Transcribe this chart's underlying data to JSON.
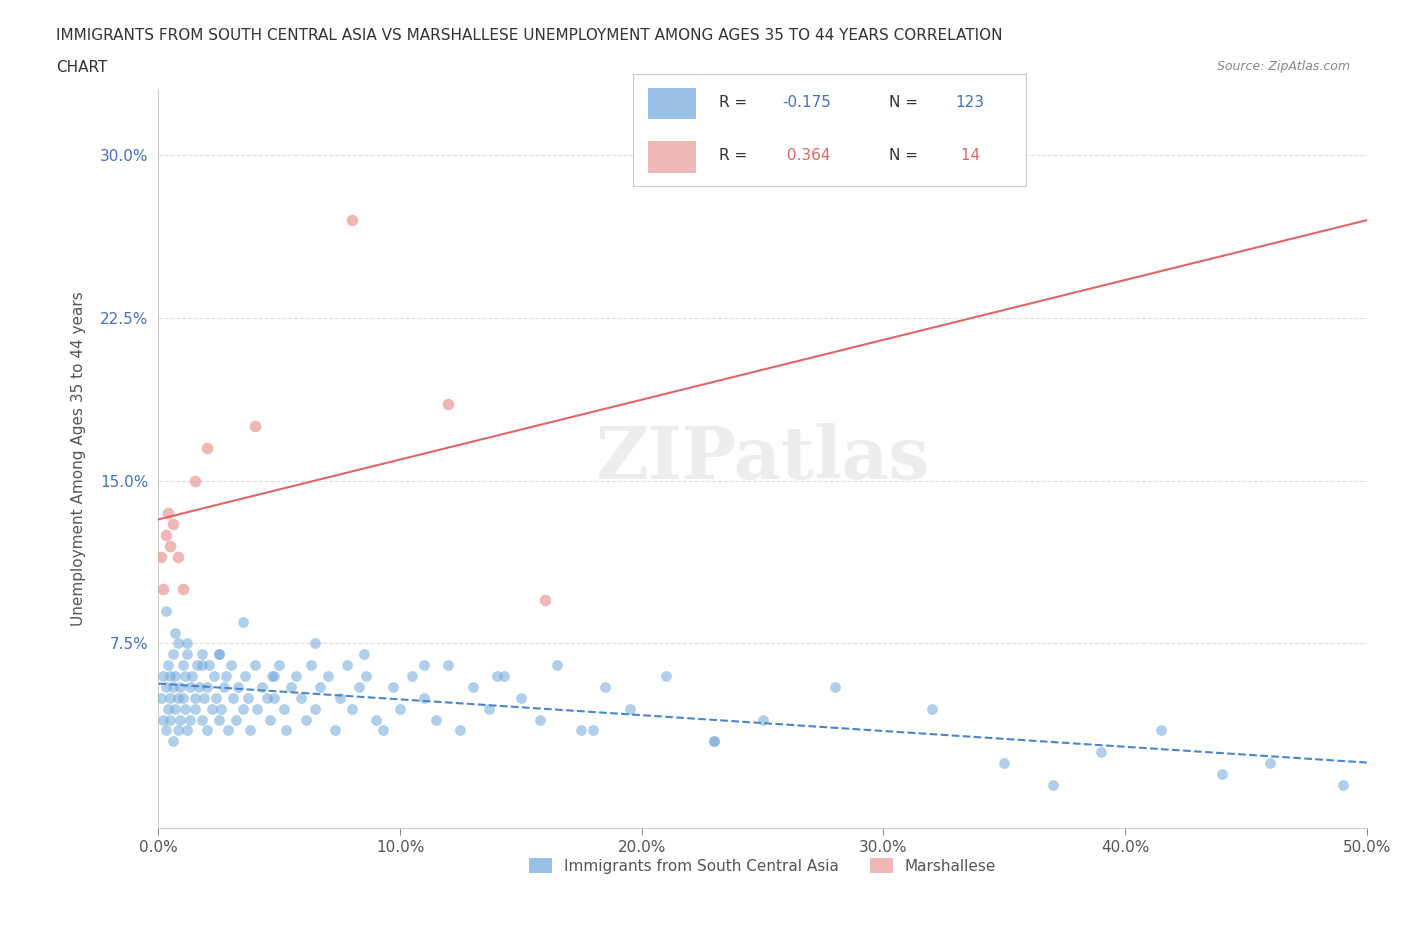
{
  "title_line1": "IMMIGRANTS FROM SOUTH CENTRAL ASIA VS MARSHALLESE UNEMPLOYMENT AMONG AGES 35 TO 44 YEARS CORRELATION",
  "title_line2": "CHART",
  "source_text": "Source: ZipAtlas.com",
  "xlabel": "",
  "ylabel": "Unemployment Among Ages 35 to 44 years",
  "xlim": [
    0.0,
    0.5
  ],
  "ylim": [
    -0.01,
    0.33
  ],
  "xtick_labels": [
    "0.0%",
    "10.0%",
    "20.0%",
    "30.0%",
    "40.0%",
    "50.0%"
  ],
  "xtick_values": [
    0.0,
    0.1,
    0.2,
    0.3,
    0.4,
    0.5
  ],
  "ytick_labels": [
    "7.5%",
    "15.0%",
    "22.5%",
    "30.0%"
  ],
  "ytick_values": [
    0.075,
    0.15,
    0.225,
    0.3
  ],
  "blue_color": "#6fa8dc",
  "pink_color": "#ea9999",
  "blue_line_color": "#4a86c8",
  "pink_line_color": "#e06666",
  "blue_R": -0.175,
  "blue_N": 123,
  "pink_R": 0.364,
  "pink_N": 14,
  "legend_label_blue": "Immigrants from South Central Asia",
  "legend_label_pink": "Marshallese",
  "watermark": "ZIPatlas",
  "background_color": "#ffffff",
  "blue_scatter_x": [
    0.001,
    0.002,
    0.002,
    0.003,
    0.003,
    0.004,
    0.004,
    0.005,
    0.005,
    0.005,
    0.006,
    0.006,
    0.006,
    0.007,
    0.007,
    0.008,
    0.008,
    0.008,
    0.009,
    0.009,
    0.01,
    0.01,
    0.011,
    0.011,
    0.012,
    0.012,
    0.013,
    0.013,
    0.014,
    0.015,
    0.015,
    0.016,
    0.017,
    0.018,
    0.018,
    0.019,
    0.02,
    0.02,
    0.021,
    0.022,
    0.023,
    0.024,
    0.025,
    0.025,
    0.026,
    0.027,
    0.028,
    0.029,
    0.03,
    0.031,
    0.032,
    0.033,
    0.035,
    0.036,
    0.037,
    0.038,
    0.04,
    0.041,
    0.043,
    0.045,
    0.046,
    0.047,
    0.048,
    0.05,
    0.052,
    0.053,
    0.055,
    0.057,
    0.059,
    0.061,
    0.063,
    0.065,
    0.067,
    0.07,
    0.073,
    0.075,
    0.078,
    0.08,
    0.083,
    0.086,
    0.09,
    0.093,
    0.097,
    0.1,
    0.105,
    0.11,
    0.115,
    0.12,
    0.125,
    0.13,
    0.137,
    0.143,
    0.15,
    0.158,
    0.165,
    0.175,
    0.185,
    0.195,
    0.21,
    0.23,
    0.25,
    0.28,
    0.32,
    0.35,
    0.37,
    0.39,
    0.415,
    0.44,
    0.46,
    0.49,
    0.003,
    0.007,
    0.012,
    0.018,
    0.025,
    0.035,
    0.048,
    0.065,
    0.085,
    0.11,
    0.14,
    0.18,
    0.23
  ],
  "blue_scatter_y": [
    0.05,
    0.06,
    0.04,
    0.055,
    0.035,
    0.045,
    0.065,
    0.05,
    0.04,
    0.06,
    0.055,
    0.03,
    0.07,
    0.045,
    0.06,
    0.05,
    0.035,
    0.075,
    0.055,
    0.04,
    0.05,
    0.065,
    0.045,
    0.06,
    0.035,
    0.07,
    0.055,
    0.04,
    0.06,
    0.05,
    0.045,
    0.065,
    0.055,
    0.04,
    0.07,
    0.05,
    0.055,
    0.035,
    0.065,
    0.045,
    0.06,
    0.05,
    0.04,
    0.07,
    0.045,
    0.055,
    0.06,
    0.035,
    0.065,
    0.05,
    0.04,
    0.055,
    0.045,
    0.06,
    0.05,
    0.035,
    0.065,
    0.045,
    0.055,
    0.05,
    0.04,
    0.06,
    0.05,
    0.065,
    0.045,
    0.035,
    0.055,
    0.06,
    0.05,
    0.04,
    0.065,
    0.045,
    0.055,
    0.06,
    0.035,
    0.05,
    0.065,
    0.045,
    0.055,
    0.06,
    0.04,
    0.035,
    0.055,
    0.045,
    0.06,
    0.05,
    0.04,
    0.065,
    0.035,
    0.055,
    0.045,
    0.06,
    0.05,
    0.04,
    0.065,
    0.035,
    0.055,
    0.045,
    0.06,
    0.03,
    0.04,
    0.055,
    0.045,
    0.02,
    0.01,
    0.025,
    0.035,
    0.015,
    0.02,
    0.01,
    0.09,
    0.08,
    0.075,
    0.065,
    0.07,
    0.085,
    0.06,
    0.075,
    0.07,
    0.065,
    0.06,
    0.035,
    0.03
  ],
  "pink_scatter_x": [
    0.001,
    0.002,
    0.003,
    0.004,
    0.005,
    0.006,
    0.008,
    0.01,
    0.015,
    0.02,
    0.04,
    0.08,
    0.12,
    0.16
  ],
  "pink_scatter_y": [
    0.115,
    0.1,
    0.125,
    0.135,
    0.12,
    0.13,
    0.115,
    0.1,
    0.15,
    0.165,
    0.175,
    0.27,
    0.185,
    0.095
  ]
}
